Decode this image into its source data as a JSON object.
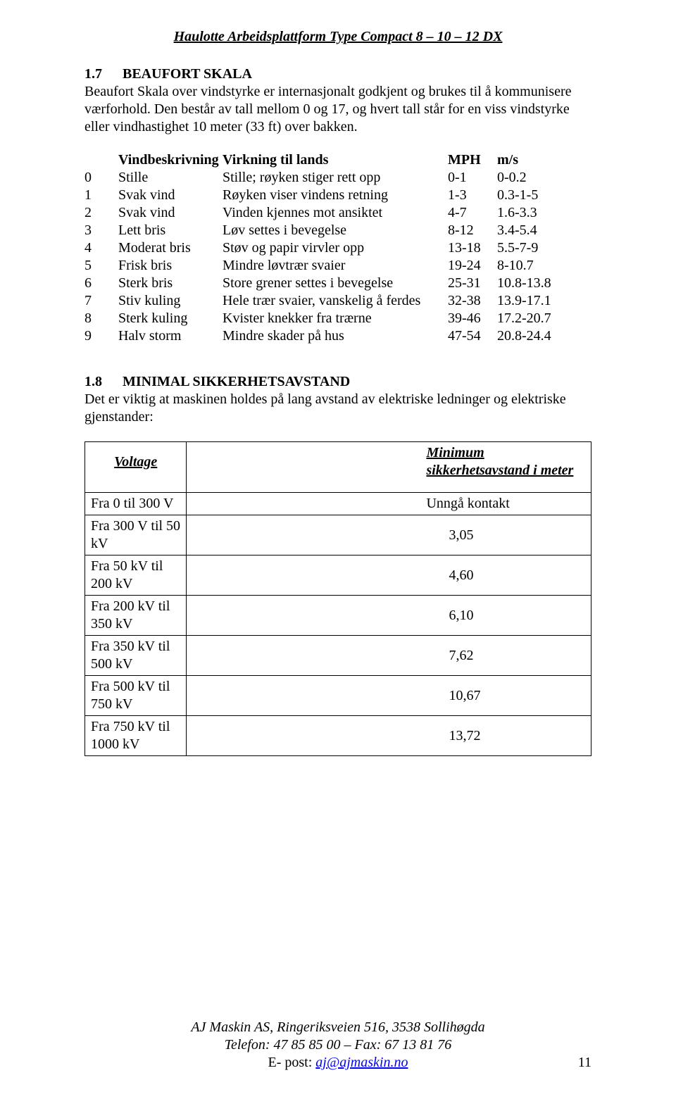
{
  "header": "Haulotte   Arbeidsplattform   Type Compact 8 – 10 – 12 DX",
  "section17": {
    "num": "1.7",
    "title": "BEAUFORT SKALA",
    "para": "Beaufort Skala over vindstyrke er internasjonalt godkjent og brukes til å kommunisere værforhold. Den består av tall mellom 0 og 17, og hvert tall står for en viss vindstyrke eller vindhastighet 10 meter (33 ft) over bakken."
  },
  "beaufort": {
    "head": {
      "desc": "Vindbeskrivning",
      "eff": "Virkning til lands",
      "mph": "MPH",
      "ms": "m/s"
    },
    "rows": [
      {
        "n": "0",
        "name": "Stille",
        "eff": "Stille; røyken stiger rett opp",
        "mph": "0-1",
        "ms": "0-0.2"
      },
      {
        "n": "1",
        "name": "Svak vind",
        "eff": "Røyken viser vindens retning",
        "mph": "1-3",
        "ms": "0.3-1-5"
      },
      {
        "n": "2",
        "name": "Svak vind",
        "eff": "Vinden kjennes mot ansiktet",
        "mph": "4-7",
        "ms": "1.6-3.3"
      },
      {
        "n": "3",
        "name": "Lett bris",
        "eff": "Løv settes i bevegelse",
        "mph": "8-12",
        "ms": "3.4-5.4"
      },
      {
        "n": "4",
        "name": "Moderat bris",
        "eff": "Støv og papir virvler opp",
        "mph": "13-18",
        "ms": "5.5-7-9"
      },
      {
        "n": "5",
        "name": "Frisk bris",
        "eff": "Mindre løvtrær svaier",
        "mph": "19-24",
        "ms": "8-10.7"
      },
      {
        "n": "6",
        "name": "Sterk bris",
        "eff": "Store grener settes i bevegelse",
        "mph": "25-31",
        "ms": "10.8-13.8"
      },
      {
        "n": "7",
        "name": "Stiv kuling",
        "eff": "Hele trær svaier, vanskelig å ferdes",
        "mph": "32-38",
        "ms": "13.9-17.1"
      },
      {
        "n": "8",
        "name": "Sterk kuling",
        "eff": "Kvister knekker fra trærne",
        "mph": "39-46",
        "ms": "17.2-20.7"
      },
      {
        "n": "9",
        "name": "Halv storm",
        "eff": "Mindre skader på hus",
        "mph": "47-54",
        "ms": "20.8-24.4"
      }
    ]
  },
  "section18": {
    "num": "1.8",
    "title": "MINIMAL SIKKERHETSAVSTAND",
    "para": "Det er viktig at maskinen holdes på lang avstand av elektriske ledninger og elektriske gjenstander:"
  },
  "voltage": {
    "head": {
      "l": "Voltage",
      "r": "Minimum sikkerhetsavstand i meter"
    },
    "rows": [
      {
        "l": "Fra 0 til 300 V",
        "r": "Unngå kontakt",
        "rnum": false
      },
      {
        "l": "Fra 300 V til 50 kV",
        "r": "3,05",
        "rnum": true
      },
      {
        "l": "Fra 50 kV til 200 kV",
        "r": "4,60",
        "rnum": true
      },
      {
        "l": "Fra 200 kV til 350 kV",
        "r": "6,10",
        "rnum": true
      },
      {
        "l": "Fra 350 kV til 500 kV",
        "r": "7,62",
        "rnum": true
      },
      {
        "l": "Fra 500 kV til 750 kV",
        "r": "10,67",
        "rnum": true
      },
      {
        "l": "Fra 750 kV til 1000 kV",
        "r": "13,72",
        "rnum": true
      }
    ]
  },
  "footer": {
    "line1": "AJ Maskin AS, Ringeriksveien 516, 3538 Sollihøgda",
    "line2": "Telefon: 47 85 85 00 – Fax: 67 13 81 76",
    "line3_prefix": "E- post: ",
    "email": "aj@ajmaskin.no",
    "pagenum": "11"
  }
}
